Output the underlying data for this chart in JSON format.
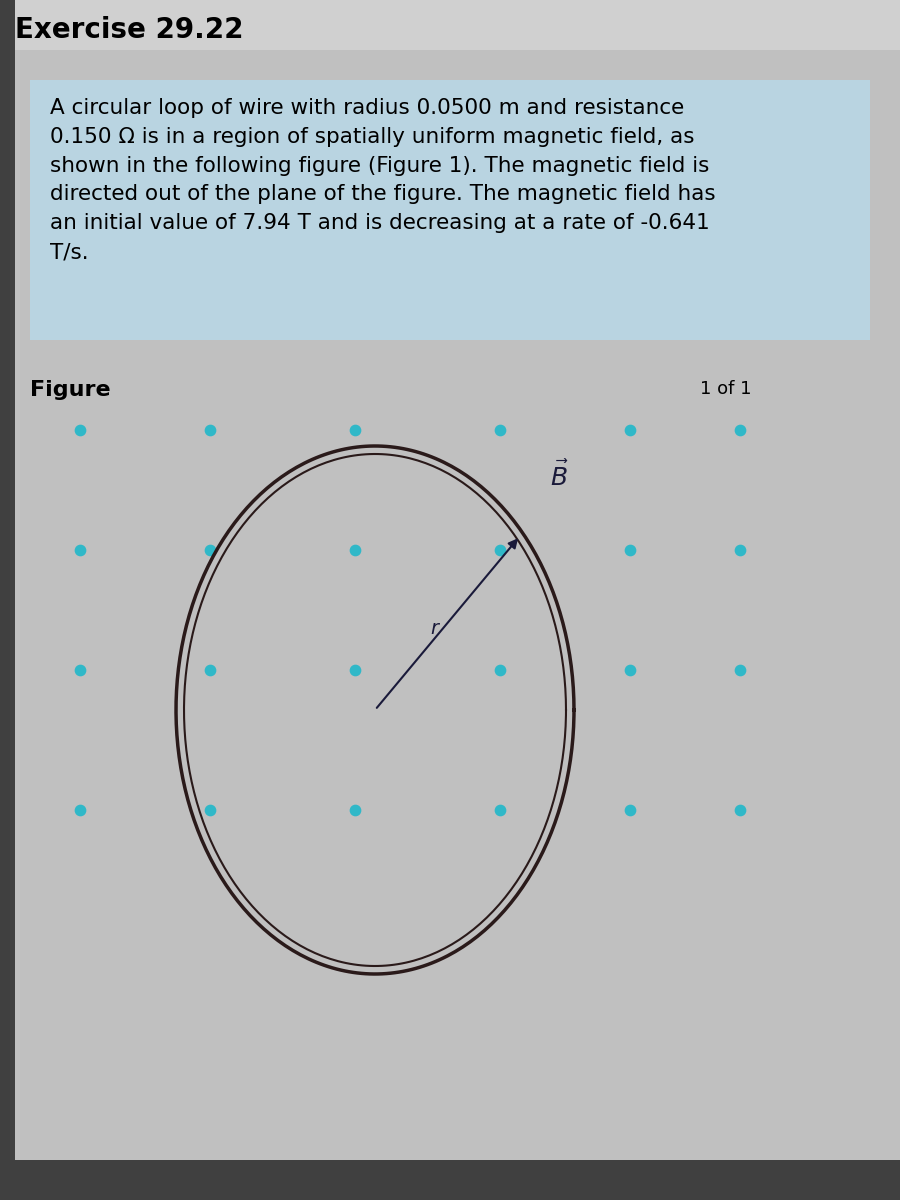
{
  "title": "Exercise 29.22",
  "title_fontsize": 20,
  "title_fontweight": "bold",
  "outer_bg": "#b0b0b0",
  "inner_bg": "#c0c0c0",
  "text_box_color": "#b8d8e8",
  "description_line1": "A circular loop of wire with radius 0.0500 m and resistance",
  "description_line2": "0.150 Ω is in a region of spatially uniform magnetic field, as",
  "description_line3": "shown in the following figure (Figure 1). The magnetic field is",
  "description_line4": "directed out of the plane of the figure. The magnetic field has",
  "description_line5": "an initial value of 7.94 T and is decreasing at a rate of -0.641",
  "description_line6": "T/s.",
  "figure_label": "Figure",
  "page_indicator": "1 of 1",
  "dot_color": "#30b8c8",
  "circle_color": "#2a1a1a",
  "arrow_color": "#1a1a3a"
}
